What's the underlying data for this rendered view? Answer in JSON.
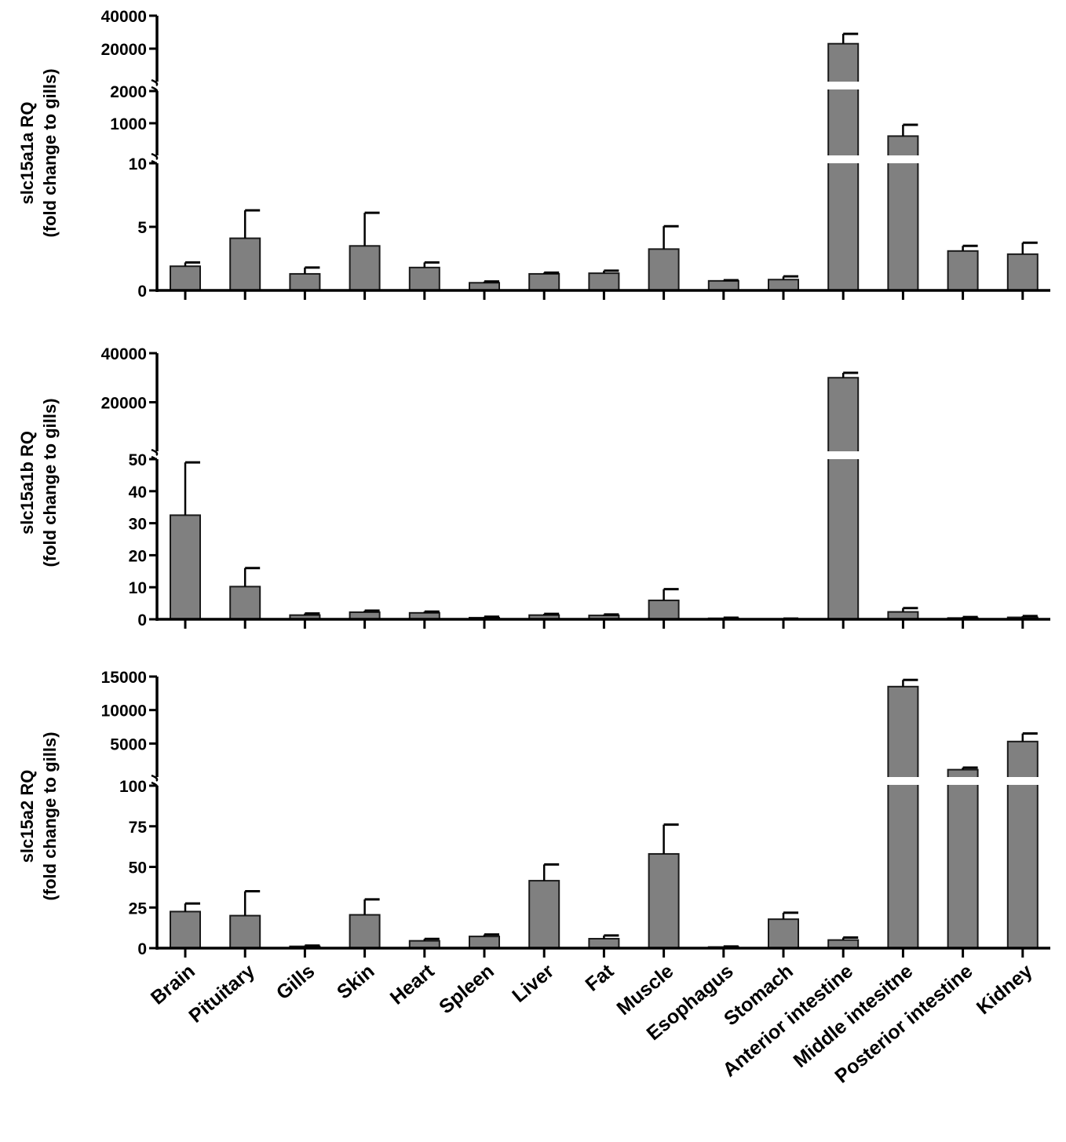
{
  "chart_data": [
    {
      "type": "bar",
      "ylabel": [
        "slc15a1a RQ",
        "(fold change to gills)"
      ],
      "categories": [
        "Brain",
        "Pituitary",
        "Gills",
        "Skin",
        "Heart",
        "Spleen",
        "Liver",
        "Fat",
        "Muscle",
        "Esophagus",
        "Stomach",
        "Anterior intestine",
        "Middle intesitne",
        "Posterior intestine",
        "Kidney"
      ],
      "values": [
        1.9,
        4.1,
        1.3,
        3.5,
        1.8,
        0.6,
        1.3,
        1.35,
        3.25,
        0.75,
        0.85,
        23000,
        600,
        3.1,
        2.85
      ],
      "errors": [
        0.3,
        2.2,
        0.5,
        2.6,
        0.4,
        0.1,
        0.1,
        0.2,
        1.8,
        0.05,
        0.25,
        6000,
        350,
        0.4,
        0.9
      ],
      "y_segments": [
        {
          "range": [
            0,
            10
          ],
          "ticks": [
            0,
            5,
            10
          ],
          "tick_labels": [
            "0",
            "5",
            "10"
          ]
        },
        {
          "range": [
            0,
            2000
          ],
          "ticks": [
            1000,
            2000
          ],
          "tick_labels": [
            "1000",
            "2000"
          ]
        },
        {
          "range": [
            0,
            40000
          ],
          "ticks": [
            20000,
            40000
          ],
          "tick_labels": [
            "20000",
            "40000"
          ]
        }
      ]
    },
    {
      "type": "bar",
      "ylabel": [
        "slc15a1b RQ",
        "(fold change to gills)"
      ],
      "categories": [
        "Brain",
        "Pituitary",
        "Gills",
        "Skin",
        "Heart",
        "Spleen",
        "Liver",
        "Fat",
        "Muscle",
        "Esophagus",
        "Stomach",
        "Anterior intestine",
        "Middle intesitne",
        "Posterior intestine",
        "Kidney"
      ],
      "values": [
        32.5,
        10.2,
        1.3,
        2.2,
        2.0,
        0.5,
        1.3,
        1.2,
        5.9,
        0.3,
        0.1,
        30000,
        2.3,
        0.4,
        0.6
      ],
      "errors": [
        16.5,
        5.8,
        0.5,
        0.5,
        0.4,
        0.3,
        0.4,
        0.3,
        3.5,
        0.2,
        0.1,
        2000,
        1.2,
        0.3,
        0.4
      ],
      "y_segments": [
        {
          "range": [
            0,
            50
          ],
          "ticks": [
            0,
            10,
            20,
            30,
            40,
            50
          ],
          "tick_labels": [
            "0",
            "10",
            "20",
            "30",
            "40",
            "50"
          ]
        },
        {
          "range": [
            0,
            40000
          ],
          "ticks": [
            20000,
            40000
          ],
          "tick_labels": [
            "20000",
            "40000"
          ]
        }
      ]
    },
    {
      "type": "bar",
      "ylabel": [
        "slc15a2 RQ",
        "(fold change to gills)"
      ],
      "categories": [
        "Brain",
        "Pituitary",
        "Gills",
        "Skin",
        "Heart",
        "Spleen",
        "Liver",
        "Fat",
        "Muscle",
        "Esophagus",
        "Stomach",
        "Anterior intestine",
        "Middle intesitne",
        "Posterior intestine",
        "Kidney"
      ],
      "values": [
        22.5,
        20,
        1.1,
        20.5,
        4.5,
        7.2,
        41.5,
        5.8,
        58,
        0.7,
        17.8,
        5.0,
        13500,
        1100,
        5300
      ],
      "errors": [
        5,
        15,
        0.5,
        9.5,
        1.2,
        1.2,
        10,
        2,
        18,
        0.3,
        4,
        1.5,
        1000,
        300,
        1200
      ],
      "y_segments": [
        {
          "range": [
            0,
            100
          ],
          "ticks": [
            0,
            25,
            50,
            75,
            100
          ],
          "tick_labels": [
            "0",
            "25",
            "50",
            "75",
            "100"
          ]
        },
        {
          "range": [
            0,
            15000
          ],
          "ticks": [
            5000,
            10000,
            15000
          ],
          "tick_labels": [
            "5000",
            "10000",
            "15000"
          ]
        }
      ]
    }
  ]
}
